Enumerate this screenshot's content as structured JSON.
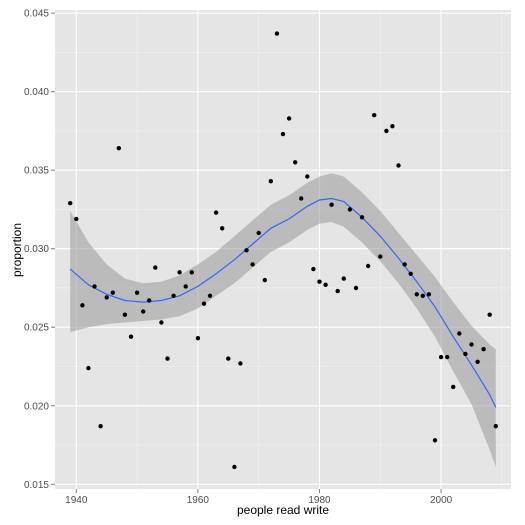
{
  "chart_data": {
    "type": "scatter",
    "title": "",
    "xlabel": "people read write",
    "ylabel": "proportion",
    "xlim": [
      1936.5,
      2011.5
    ],
    "ylim": [
      0.0147,
      0.0452
    ],
    "x_ticks": [
      1940,
      1960,
      1980,
      2000
    ],
    "x_tick_labels": [
      "1940",
      "1960",
      "1980",
      "2000"
    ],
    "y_ticks": [
      0.015,
      0.02,
      0.025,
      0.03,
      0.035,
      0.04,
      0.045
    ],
    "y_tick_labels": [
      "0.015",
      "0.020",
      "0.025",
      "0.030",
      "0.035",
      "0.040",
      "0.045"
    ],
    "grid": true,
    "legend": "none",
    "colors": {
      "panel": "#e5e5e5",
      "grid_major": "#ffffff",
      "point": "#000000",
      "smooth_line": "#3366ff",
      "ribbon": "#999999"
    },
    "series": [
      {
        "type": "scatter",
        "x": [
          1939,
          1940,
          1941,
          1942,
          1943,
          1944,
          1945,
          1946,
          1947,
          1948,
          1949,
          1950,
          1951,
          1952,
          1953,
          1954,
          1955,
          1956,
          1957,
          1958,
          1959,
          1960,
          1961,
          1962,
          1963,
          1964,
          1965,
          1966,
          1967,
          1968,
          1969,
          1970,
          1971,
          1972,
          1973,
          1974,
          1975,
          1976,
          1977,
          1978,
          1979,
          1980,
          1981,
          1982,
          1983,
          1984,
          1985,
          1986,
          1987,
          1988,
          1989,
          1990,
          1991,
          1992,
          1993,
          1994,
          1995,
          1996,
          1997,
          1998,
          1999,
          2000,
          2001,
          2002,
          2003,
          2004,
          2005,
          2006,
          2007,
          2008,
          2009
        ],
        "y": [
          0.0329,
          0.0319,
          0.0264,
          0.0224,
          0.0276,
          0.0187,
          0.0269,
          0.0272,
          0.0364,
          0.0258,
          0.0244,
          0.0272,
          0.026,
          0.0267,
          0.0288,
          0.0253,
          0.023,
          0.027,
          0.0285,
          0.0276,
          0.0285,
          0.0243,
          0.0265,
          0.027,
          0.0323,
          0.0313,
          0.023,
          0.0161,
          0.0227,
          0.0299,
          0.029,
          0.031,
          0.028,
          0.0343,
          0.0437,
          0.0373,
          0.0383,
          0.0355,
          0.0332,
          0.0346,
          0.0287,
          0.0279,
          0.0277,
          0.0328,
          0.0273,
          0.0281,
          0.0325,
          0.0275,
          0.032,
          0.0289,
          0.0385,
          0.0295,
          0.0375,
          0.0378,
          0.0353,
          0.029,
          0.0284,
          0.0271,
          0.027,
          0.0271,
          0.0178,
          0.0231,
          0.0231,
          0.0212,
          0.0246,
          0.0233,
          0.0239,
          0.0228,
          0.0236,
          0.0258,
          0.0187
        ]
      },
      {
        "type": "smooth",
        "x": [
          1939,
          1942,
          1945,
          1948,
          1951,
          1954,
          1957,
          1960,
          1963,
          1966,
          1969,
          1972,
          1975,
          1978,
          1980,
          1982,
          1984,
          1987,
          1990,
          1993,
          1996,
          1999,
          2002,
          2005,
          2008,
          2009
        ],
        "y": [
          0.0287,
          0.0277,
          0.0271,
          0.0267,
          0.0266,
          0.0267,
          0.027,
          0.0276,
          0.0284,
          0.0293,
          0.0303,
          0.0313,
          0.0319,
          0.0327,
          0.0331,
          0.0332,
          0.033,
          0.032,
          0.0308,
          0.0294,
          0.0279,
          0.0263,
          0.0244,
          0.0226,
          0.0207,
          0.0199
        ],
        "lower": [
          0.0247,
          0.025,
          0.0252,
          0.0253,
          0.0254,
          0.0255,
          0.0257,
          0.0262,
          0.027,
          0.0278,
          0.0288,
          0.0298,
          0.0304,
          0.0312,
          0.0316,
          0.0317,
          0.0314,
          0.0304,
          0.0292,
          0.0278,
          0.0262,
          0.0244,
          0.0222,
          0.0201,
          0.0172,
          0.0161
        ],
        "upper": [
          0.0324,
          0.0304,
          0.029,
          0.0281,
          0.0278,
          0.0279,
          0.0283,
          0.029,
          0.0298,
          0.0308,
          0.0318,
          0.0328,
          0.0334,
          0.0342,
          0.0346,
          0.0348,
          0.0346,
          0.0336,
          0.0324,
          0.031,
          0.0296,
          0.0282,
          0.0266,
          0.0251,
          0.0239,
          0.0236
        ]
      }
    ]
  }
}
